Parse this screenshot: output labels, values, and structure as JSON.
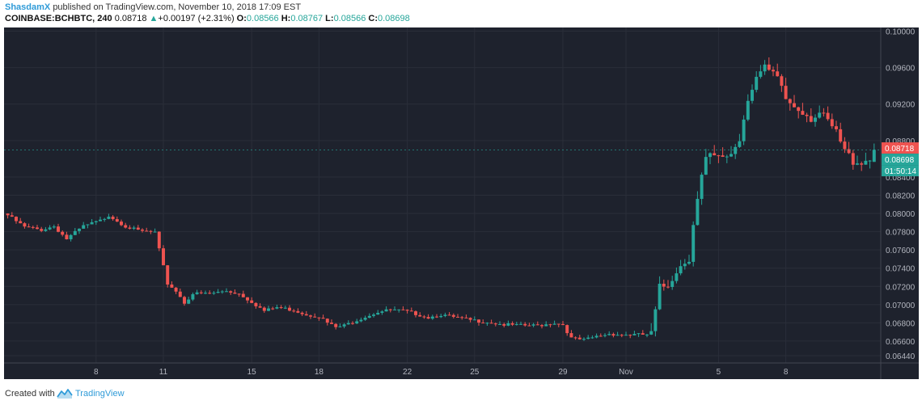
{
  "header": {
    "author": "ShasdamX",
    "published": "published on TradingView.com, November 10, 2018 17:09 EST",
    "symbol": "COINBASE:BCHBTC, 240",
    "last": "0.08718",
    "change_arrow": "▲",
    "change": "+0.00197 (+2.31%)",
    "o_label": "O:",
    "o_value": "0.08566",
    "h_label": "H:",
    "h_value": "0.08767",
    "l_label": "L:",
    "l_value": "0.08566",
    "c_label": "C:",
    "c_value": "0.08698"
  },
  "footer": {
    "created_with": "Created with",
    "brand": "TradingView",
    "logo_icon": "tradingview-logo-icon"
  },
  "colors": {
    "background": "#1e222d",
    "grid": "#2a2e39",
    "up": "#26a69a",
    "down": "#ef5350",
    "axis_text": "#b2b5be"
  },
  "chart_data": {
    "type": "candlestick",
    "ylim": [
      0.0636,
      0.1004
    ],
    "y_ticks": [
      "0.10000",
      "0.09600",
      "0.09200",
      "0.08800",
      "0.08400",
      "0.08200",
      "0.08000",
      "0.07800",
      "0.07600",
      "0.07400",
      "0.07200",
      "0.07000",
      "0.06800",
      "0.06600",
      "0.06440"
    ],
    "x_ticks": [
      {
        "label": "8",
        "bar": 21
      },
      {
        "label": "11",
        "bar": 37
      },
      {
        "label": "15",
        "bar": 58
      },
      {
        "label": "18",
        "bar": 74
      },
      {
        "label": "22",
        "bar": 95
      },
      {
        "label": "25",
        "bar": 111
      },
      {
        "label": "29",
        "bar": 132
      },
      {
        "label": "Nov",
        "bar": 147
      },
      {
        "label": "5",
        "bar": 169
      },
      {
        "label": "8",
        "bar": 185
      }
    ],
    "price_labels": [
      {
        "text": "0.08718",
        "value": 0.08718,
        "color": "#ef5350"
      },
      {
        "text": "0.08698",
        "value": 0.08698,
        "color": "#26a69a"
      },
      {
        "text": "01:50:14",
        "value": 0.0856,
        "color": "#26a69a"
      }
    ],
    "close_anchors": [
      [
        0,
        0.0798
      ],
      [
        4,
        0.0785
      ],
      [
        8,
        0.0782
      ],
      [
        11,
        0.0786
      ],
      [
        14,
        0.0772
      ],
      [
        18,
        0.0786
      ],
      [
        22,
        0.0792
      ],
      [
        24,
        0.0798
      ],
      [
        28,
        0.0786
      ],
      [
        31,
        0.0781
      ],
      [
        35,
        0.0779
      ],
      [
        36,
        0.076
      ],
      [
        38,
        0.0723
      ],
      [
        40,
        0.0715
      ],
      [
        42,
        0.0702
      ],
      [
        44,
        0.0712
      ],
      [
        48,
        0.0712
      ],
      [
        52,
        0.0715
      ],
      [
        55,
        0.0712
      ],
      [
        58,
        0.0703
      ],
      [
        61,
        0.0693
      ],
      [
        64,
        0.0697
      ],
      [
        68,
        0.0694
      ],
      [
        71,
        0.0689
      ],
      [
        74,
        0.0687
      ],
      [
        76,
        0.068
      ],
      [
        78,
        0.0675
      ],
      [
        80,
        0.0677
      ],
      [
        84,
        0.0685
      ],
      [
        88,
        0.0692
      ],
      [
        91,
        0.0694
      ],
      [
        94,
        0.0693
      ],
      [
        97,
        0.069
      ],
      [
        100,
        0.0686
      ],
      [
        103,
        0.0689
      ],
      [
        106,
        0.0686
      ],
      [
        110,
        0.0683
      ],
      [
        114,
        0.0681
      ],
      [
        118,
        0.0678
      ],
      [
        122,
        0.0677
      ],
      [
        126,
        0.0677
      ],
      [
        130,
        0.068
      ],
      [
        132,
        0.0678
      ],
      [
        134,
        0.0663
      ],
      [
        137,
        0.0661
      ],
      [
        140,
        0.0665
      ],
      [
        143,
        0.0668
      ],
      [
        146,
        0.0667
      ],
      [
        152,
        0.0667
      ],
      [
        153,
        0.0667
      ],
      [
        154,
        0.0692
      ],
      [
        155,
        0.0718
      ],
      [
        157,
        0.0722
      ],
      [
        159,
        0.0738
      ],
      [
        162,
        0.0752
      ],
      [
        163,
        0.079
      ],
      [
        165,
        0.084
      ],
      [
        166,
        0.0858
      ],
      [
        167,
        0.0862
      ],
      [
        169,
        0.086
      ],
      [
        172,
        0.0866
      ],
      [
        174,
        0.0882
      ],
      [
        176,
        0.0928
      ],
      [
        178,
        0.095
      ],
      [
        180,
        0.0958
      ],
      [
        182,
        0.0952
      ],
      [
        184,
        0.094
      ],
      [
        185,
        0.0925
      ],
      [
        187,
        0.0918
      ],
      [
        189,
        0.0913
      ],
      [
        191,
        0.0905
      ],
      [
        193,
        0.091
      ],
      [
        195,
        0.09
      ],
      [
        197,
        0.0888
      ],
      [
        199,
        0.0868
      ],
      [
        201,
        0.0858
      ],
      [
        203,
        0.0857
      ],
      [
        205,
        0.086
      ],
      [
        206,
        0.087
      ]
    ],
    "n_bars": 207,
    "last_candle": {
      "open": 0.08566,
      "high": 0.08767,
      "low": 0.08566,
      "close": 0.08698
    }
  }
}
